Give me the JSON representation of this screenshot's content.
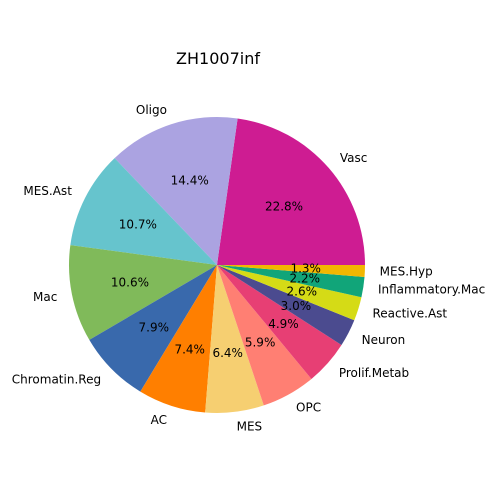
{
  "chart_data": {
    "type": "pie",
    "title": "ZH1007inf",
    "start_angle_deg": 0,
    "direction": "counterclockwise",
    "slices": [
      {
        "label": "Vasc",
        "value": 22.8,
        "pct_label": "22.8%",
        "color": "#CE1C92"
      },
      {
        "label": "Oligo",
        "value": 14.4,
        "pct_label": "14.4%",
        "color": "#ABA3E1"
      },
      {
        "label": "MES.Ast",
        "value": 10.7,
        "pct_label": "10.7%",
        "color": "#66C4CD"
      },
      {
        "label": "Mac",
        "value": 10.6,
        "pct_label": "10.6%",
        "color": "#80BA5A"
      },
      {
        "label": "Chromatin.Reg",
        "value": 7.9,
        "pct_label": "7.9%",
        "color": "#3969AC"
      },
      {
        "label": "AC",
        "value": 7.4,
        "pct_label": "7.4%",
        "color": "#FF7F00"
      },
      {
        "label": "MES",
        "value": 6.4,
        "pct_label": "6.4%",
        "color": "#F6CF71"
      },
      {
        "label": "OPC",
        "value": 5.9,
        "pct_label": "5.9%",
        "color": "#FF7F73"
      },
      {
        "label": "Prolif.Metab",
        "value": 4.9,
        "pct_label": "4.9%",
        "color": "#E73F74"
      },
      {
        "label": "Neuron",
        "value": 3.0,
        "pct_label": "3.0%",
        "color": "#4B4B8F"
      },
      {
        "label": "Reactive.Ast",
        "value": 2.6,
        "pct_label": "2.6%",
        "color": "#D5DB16"
      },
      {
        "label": "Inflammatory.Mac",
        "value": 2.2,
        "pct_label": "2.2%",
        "color": "#11A579"
      },
      {
        "label": "MES.Hyp",
        "value": 1.3,
        "pct_label": "1.3%",
        "color": "#F2B701"
      }
    ]
  }
}
